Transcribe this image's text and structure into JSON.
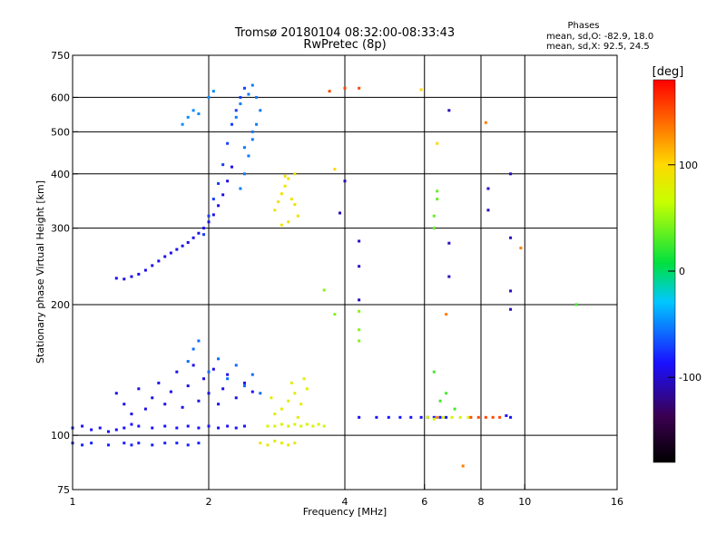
{
  "chart_data": {
    "type": "scatter",
    "title": "Tromsø 20180104 08:32:00-08:33:43",
    "subtitle": "RwPretec (8p)",
    "xlabel": "Frequency [MHz]",
    "ylabel": "Stationary phase Virtual Height [km]",
    "x_scale": "log",
    "y_scale": "log",
    "xlim": [
      1,
      16
    ],
    "ylim": [
      75,
      750
    ],
    "x_ticks": [
      1,
      2,
      4,
      6,
      8,
      10,
      16
    ],
    "x_tick_labels": [
      "1",
      "2",
      "4",
      "6",
      "8",
      "10",
      "16"
    ],
    "y_ticks": [
      75,
      100,
      200,
      300,
      400,
      500,
      600,
      750
    ],
    "y_tick_labels": [
      "75",
      "100",
      "200",
      "300",
      "400",
      "500",
      "600",
      "750"
    ],
    "x_grid": [
      2,
      4,
      6,
      8,
      10
    ],
    "y_grid": [
      100,
      200,
      300,
      400,
      500,
      600
    ],
    "grid": true,
    "legend": {
      "title": "Phases",
      "lines": [
        "mean, sd,O: -82.9, 18.0",
        "mean, sd,X: 92.5, 24.5"
      ],
      "placement": "top-right"
    },
    "colorbar": {
      "label": "[deg]",
      "ticks": [
        100,
        0,
        -100
      ],
      "range": [
        -180,
        180
      ],
      "placement": "right"
    },
    "traces": [
      {
        "phase": -100,
        "points": [
          [
            1.0,
            104
          ],
          [
            1.05,
            105
          ],
          [
            1.1,
            103
          ],
          [
            1.15,
            104
          ],
          [
            1.2,
            102
          ],
          [
            1.25,
            103
          ],
          [
            1.3,
            104
          ],
          [
            1.35,
            106
          ],
          [
            1.4,
            105
          ],
          [
            1.5,
            104
          ],
          [
            1.6,
            105
          ],
          [
            1.7,
            104
          ],
          [
            1.8,
            105
          ],
          [
            1.9,
            104
          ],
          [
            2.0,
            105
          ],
          [
            2.1,
            104
          ],
          [
            2.2,
            105
          ],
          [
            2.3,
            104
          ],
          [
            2.4,
            105
          ]
        ]
      },
      {
        "phase": -95,
        "points": [
          [
            1.0,
            96
          ],
          [
            1.05,
            95
          ],
          [
            1.1,
            96
          ],
          [
            1.2,
            95
          ],
          [
            1.3,
            96
          ],
          [
            1.35,
            95
          ],
          [
            1.4,
            96
          ],
          [
            1.5,
            95
          ],
          [
            1.6,
            96
          ],
          [
            1.7,
            96
          ],
          [
            1.8,
            95
          ],
          [
            1.9,
            96
          ]
        ]
      },
      {
        "phase": -105,
        "points": [
          [
            1.25,
            125
          ],
          [
            1.3,
            118
          ],
          [
            1.35,
            112
          ],
          [
            1.4,
            128
          ],
          [
            1.45,
            115
          ],
          [
            1.5,
            122
          ],
          [
            1.55,
            132
          ],
          [
            1.6,
            118
          ],
          [
            1.65,
            126
          ],
          [
            1.7,
            140
          ],
          [
            1.75,
            116
          ],
          [
            1.8,
            130
          ],
          [
            1.85,
            145
          ],
          [
            1.9,
            120
          ],
          [
            1.95,
            135
          ],
          [
            2.0,
            125
          ],
          [
            2.05,
            142
          ],
          [
            2.1,
            118
          ],
          [
            2.15,
            128
          ],
          [
            2.2,
            138
          ],
          [
            2.3,
            122
          ],
          [
            2.4,
            132
          ],
          [
            2.5,
            126
          ]
        ]
      },
      {
        "phase": -70,
        "points": [
          [
            1.8,
            148
          ],
          [
            1.85,
            158
          ],
          [
            1.9,
            165
          ],
          [
            2.0,
            140
          ],
          [
            2.1,
            150
          ],
          [
            2.2,
            135
          ],
          [
            2.3,
            145
          ],
          [
            2.4,
            130
          ],
          [
            2.5,
            138
          ],
          [
            2.6,
            125
          ]
        ]
      },
      {
        "phase": -105,
        "points": [
          [
            1.25,
            230
          ],
          [
            1.3,
            229
          ],
          [
            1.35,
            232
          ],
          [
            1.4,
            235
          ],
          [
            1.45,
            240
          ],
          [
            1.5,
            246
          ],
          [
            1.55,
            252
          ],
          [
            1.6,
            258
          ],
          [
            1.65,
            263
          ],
          [
            1.7,
            268
          ],
          [
            1.75,
            273
          ],
          [
            1.8,
            278
          ],
          [
            1.85,
            285
          ],
          [
            1.9,
            292
          ],
          [
            1.95,
            300
          ],
          [
            2.0,
            310
          ],
          [
            2.05,
            322
          ],
          [
            2.1,
            338
          ],
          [
            2.15,
            358
          ],
          [
            2.2,
            385
          ],
          [
            2.25,
            415
          ]
        ]
      },
      {
        "phase": -85,
        "points": [
          [
            1.95,
            290
          ],
          [
            2.0,
            320
          ],
          [
            2.05,
            350
          ],
          [
            2.1,
            380
          ],
          [
            2.15,
            420
          ],
          [
            2.2,
            470
          ],
          [
            2.25,
            520
          ],
          [
            2.3,
            560
          ],
          [
            2.35,
            600
          ],
          [
            2.4,
            630
          ]
        ]
      },
      {
        "phase": -65,
        "points": [
          [
            2.3,
            540
          ],
          [
            2.35,
            580
          ],
          [
            2.45,
            610
          ],
          [
            2.5,
            640
          ],
          [
            2.55,
            600
          ],
          [
            2.6,
            560
          ],
          [
            2.55,
            520
          ],
          [
            2.5,
            480
          ],
          [
            2.45,
            440
          ],
          [
            2.4,
            400
          ],
          [
            2.35,
            370
          ],
          [
            2.4,
            460
          ],
          [
            2.5,
            500
          ]
        ]
      },
      {
        "phase": -60,
        "points": [
          [
            1.75,
            520
          ],
          [
            1.8,
            540
          ],
          [
            1.85,
            560
          ],
          [
            1.9,
            550
          ],
          [
            2.0,
            600
          ],
          [
            2.05,
            620
          ]
        ]
      },
      {
        "phase": 90,
        "points": [
          [
            2.8,
            330
          ],
          [
            2.85,
            345
          ],
          [
            2.9,
            360
          ],
          [
            2.95,
            375
          ],
          [
            3.0,
            390
          ],
          [
            3.05,
            350
          ],
          [
            3.1,
            340
          ],
          [
            3.15,
            320
          ],
          [
            3.0,
            310
          ],
          [
            2.9,
            305
          ],
          [
            2.95,
            395
          ],
          [
            3.1,
            400
          ]
        ]
      },
      {
        "phase": 80,
        "points": [
          [
            2.9,
            115
          ],
          [
            3.0,
            120
          ],
          [
            3.1,
            125
          ],
          [
            3.2,
            118
          ],
          [
            3.3,
            128
          ],
          [
            2.8,
            112
          ],
          [
            3.05,
            132
          ],
          [
            3.15,
            110
          ],
          [
            2.75,
            122
          ],
          [
            3.25,
            135
          ]
        ]
      },
      {
        "phase": 70,
        "points": [
          [
            2.7,
            105
          ],
          [
            2.8,
            105
          ],
          [
            2.9,
            106
          ],
          [
            3.0,
            105
          ],
          [
            3.1,
            106
          ],
          [
            3.2,
            105
          ],
          [
            3.3,
            106
          ],
          [
            3.4,
            105
          ],
          [
            3.5,
            106
          ],
          [
            3.6,
            105
          ]
        ]
      },
      {
        "phase": 85,
        "points": [
          [
            2.6,
            96
          ],
          [
            2.7,
            95
          ],
          [
            2.8,
            97
          ],
          [
            2.9,
            96
          ],
          [
            3.0,
            95
          ],
          [
            3.1,
            96
          ]
        ]
      },
      {
        "phase": 40,
        "points": [
          [
            3.6,
            216
          ],
          [
            3.8,
            190
          ],
          [
            4.3,
            193
          ],
          [
            4.3,
            175
          ],
          [
            4.3,
            165
          ]
        ]
      },
      {
        "phase": 150,
        "points": [
          [
            3.7,
            620
          ],
          [
            4.0,
            630
          ],
          [
            4.3,
            630
          ]
        ]
      },
      {
        "phase": 100,
        "points": [
          [
            5.9,
            625
          ],
          [
            6.4,
            470
          ],
          [
            3.8,
            410
          ]
        ]
      },
      {
        "phase": -115,
        "points": [
          [
            4.0,
            385
          ],
          [
            3.9,
            325
          ],
          [
            4.3,
            280
          ],
          [
            4.3,
            245
          ],
          [
            4.3,
            205
          ],
          [
            6.8,
            560
          ],
          [
            6.8,
            277
          ],
          [
            6.8,
            232
          ],
          [
            9.3,
            400
          ],
          [
            9.3,
            285
          ],
          [
            9.3,
            215
          ],
          [
            9.3,
            195
          ],
          [
            8.3,
            370
          ],
          [
            8.3,
            330
          ]
        ]
      },
      {
        "phase": 30,
        "points": [
          [
            6.4,
            365
          ],
          [
            6.4,
            350
          ],
          [
            6.3,
            320
          ],
          [
            6.3,
            300
          ]
        ]
      },
      {
        "phase": -100,
        "points": [
          [
            4.3,
            110
          ],
          [
            4.7,
            110
          ],
          [
            5.0,
            110
          ],
          [
            5.3,
            110
          ],
          [
            5.6,
            110
          ],
          [
            5.9,
            110
          ],
          [
            6.1,
            110
          ],
          [
            6.3,
            110
          ],
          [
            6.5,
            110
          ],
          [
            6.7,
            110
          ],
          [
            9.1,
            111
          ],
          [
            9.3,
            110
          ]
        ]
      },
      {
        "phase": 70,
        "points": [
          [
            6.1,
            110
          ],
          [
            6.3,
            109
          ],
          [
            6.6,
            110
          ],
          [
            6.9,
            110
          ],
          [
            7.2,
            110
          ],
          [
            7.5,
            110
          ]
        ]
      },
      {
        "phase": 150,
        "points": [
          [
            7.6,
            110
          ],
          [
            7.9,
            110
          ],
          [
            8.2,
            110
          ],
          [
            8.5,
            110
          ],
          [
            8.8,
            110
          ]
        ]
      },
      {
        "phase": 20,
        "points": [
          [
            6.3,
            140
          ],
          [
            6.5,
            120
          ],
          [
            6.7,
            125
          ],
          [
            7.0,
            115
          ],
          [
            13.0,
            200
          ]
        ]
      },
      {
        "phase": 130,
        "points": [
          [
            6.7,
            190
          ],
          [
            7.3,
            85
          ],
          [
            8.2,
            525
          ],
          [
            9.8,
            270
          ],
          [
            6.4,
            110
          ]
        ]
      }
    ]
  }
}
